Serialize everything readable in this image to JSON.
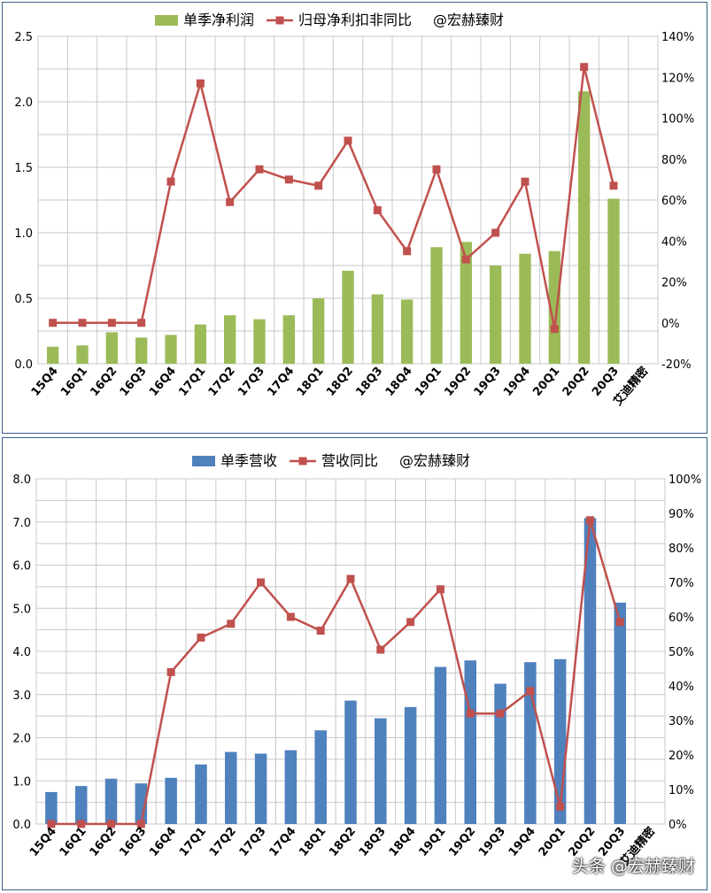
{
  "charts": {
    "top": {
      "chart_data": {
        "type": "bar",
        "categories": [
          "15Q4",
          "16Q1",
          "16Q2",
          "16Q3",
          "16Q4",
          "17Q1",
          "17Q2",
          "17Q3",
          "17Q4",
          "18Q1",
          "18Q2",
          "18Q3",
          "18Q4",
          "19Q1",
          "19Q2",
          "19Q3",
          "19Q4",
          "20Q1",
          "20Q2",
          "20Q3",
          "艾迪精密"
        ],
        "series": [
          {
            "name": "单季净利润",
            "type": "bar",
            "axis": "left",
            "color": "#9bbb59",
            "values": [
              0.13,
              0.14,
              0.24,
              0.2,
              0.22,
              0.3,
              0.37,
              0.34,
              0.37,
              0.5,
              0.71,
              0.53,
              0.49,
              0.89,
              0.93,
              0.75,
              0.84,
              0.86,
              2.08,
              1.26,
              null
            ]
          },
          {
            "name": "归母净利扣非同比",
            "type": "line",
            "axis": "right",
            "color": "#c0504d",
            "values": [
              0,
              0,
              0,
              0,
              69,
              117,
              59,
              75,
              70,
              67,
              89,
              55,
              35,
              75,
              31,
              44,
              69,
              -3,
              125,
              67,
              null
            ]
          }
        ],
        "legend_extra": "@宏赫臻财",
        "ylim": [
          0,
          2.5
        ],
        "y_ticks": [
          "0.0",
          "0.5",
          "1.0",
          "1.5",
          "2.0",
          "2.5"
        ],
        "y2lim": [
          -20,
          140
        ],
        "y2_ticks": [
          "-20%",
          "0%",
          "20%",
          "40%",
          "60%",
          "80%",
          "100%",
          "120%",
          "140%"
        ],
        "grid": true,
        "legend": "top"
      }
    },
    "bottom": {
      "chart_data": {
        "type": "bar",
        "categories": [
          "15Q4",
          "16Q1",
          "16Q2",
          "16Q3",
          "16Q4",
          "17Q1",
          "17Q2",
          "17Q3",
          "17Q4",
          "18Q1",
          "18Q2",
          "18Q3",
          "18Q4",
          "19Q1",
          "19Q2",
          "19Q3",
          "19Q4",
          "20Q1",
          "20Q2",
          "20Q3",
          "艾迪精密"
        ],
        "series": [
          {
            "name": "单季营收",
            "type": "bar",
            "axis": "left",
            "color": "#4f81bd",
            "values": [
              0.74,
              0.88,
              1.05,
              0.94,
              1.07,
              1.38,
              1.67,
              1.63,
              1.71,
              2.17,
              2.86,
              2.45,
              2.71,
              3.64,
              3.79,
              3.25,
              3.75,
              3.82,
              7.09,
              5.13,
              null
            ]
          },
          {
            "name": "营收同比",
            "type": "line",
            "axis": "right",
            "color": "#c0504d",
            "values": [
              0,
              0,
              0,
              0,
              44,
              54,
              58,
              70,
              60,
              56,
              71,
              50.5,
              58.5,
              68,
              32,
              32,
              38.5,
              5,
              88,
              58.5,
              null
            ]
          }
        ],
        "legend_extra": "@宏赫臻财",
        "ylim": [
          0,
          8
        ],
        "y_ticks": [
          "0.0",
          "1.0",
          "2.0",
          "3.0",
          "4.0",
          "5.0",
          "6.0",
          "7.0",
          "8.0"
        ],
        "y2lim": [
          0,
          100
        ],
        "y2_ticks": [
          "0%",
          "10%",
          "20%",
          "30%",
          "40%",
          "50%",
          "60%",
          "70%",
          "80%",
          "90%",
          "100%"
        ],
        "grid": true,
        "legend": "top"
      }
    }
  },
  "watermark": {
    "prefix": "头条",
    "text": "@宏赫臻财"
  }
}
